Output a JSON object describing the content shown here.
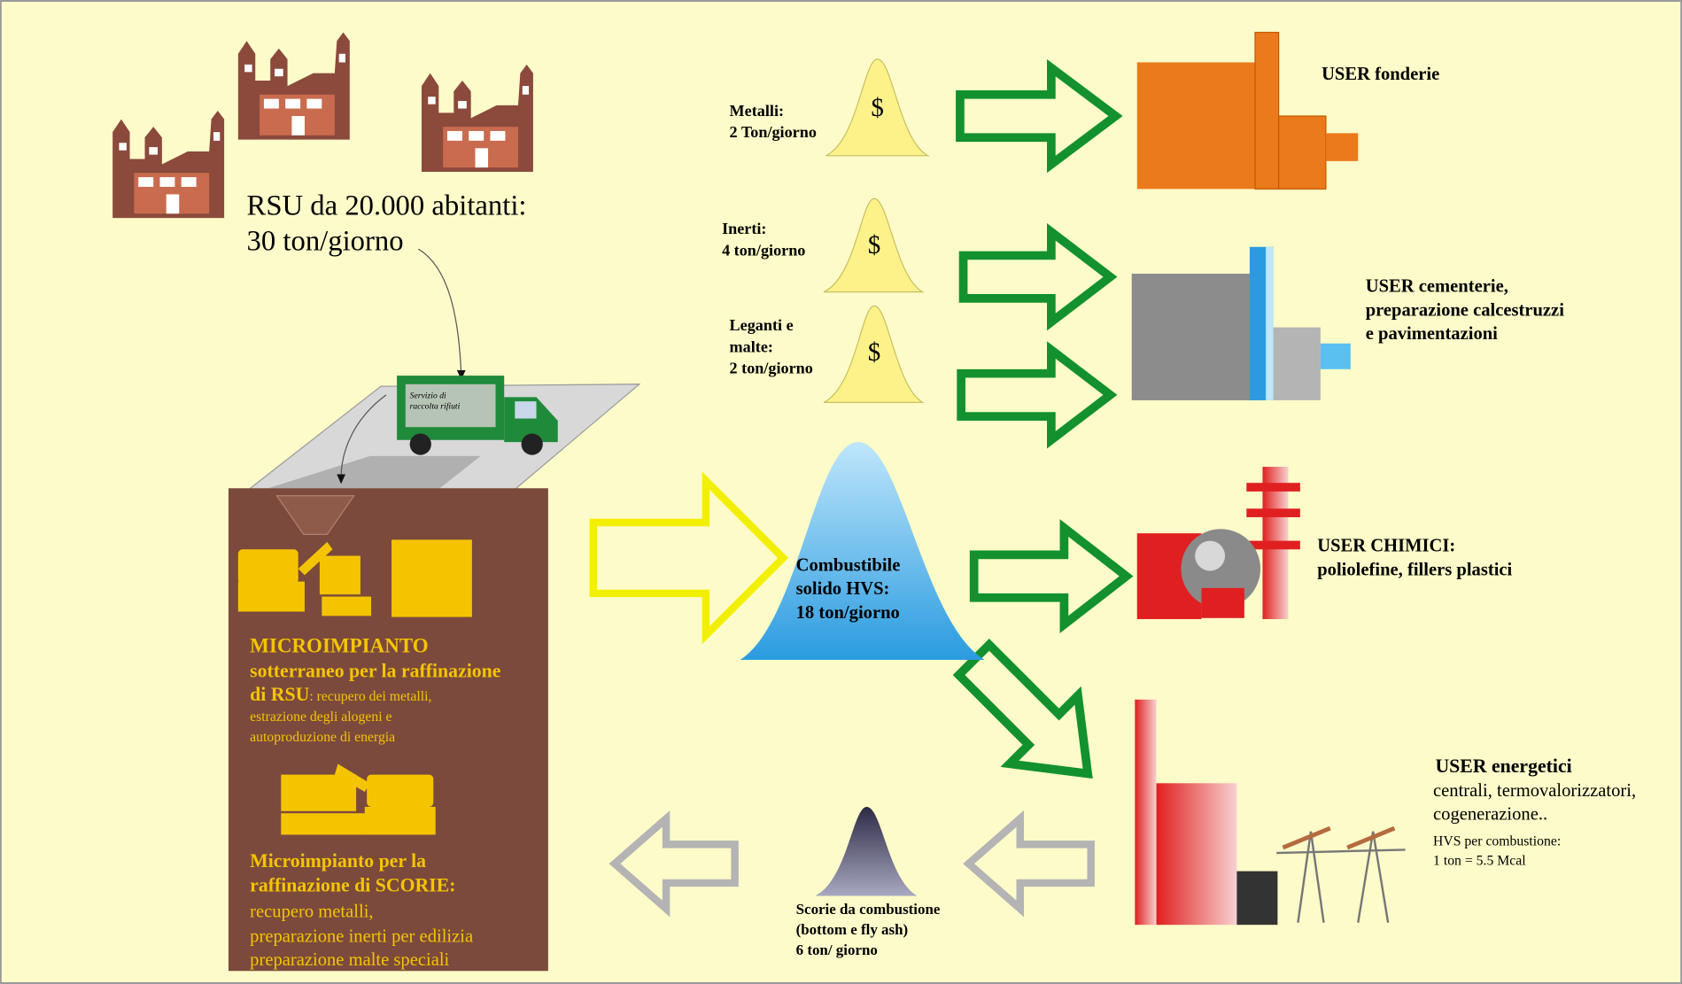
{
  "source": {
    "lines": [
      "RSU da 20.000 abitanti:",
      "30 ton/giorno"
    ]
  },
  "truck": {
    "lines": [
      "Servizio di",
      "raccolta rifiuti"
    ]
  },
  "microimpianto_rsu": {
    "title": "MICROIMPIANTO",
    "lines": [
      "sotterraneo per la raffinazione",
      "di RSU"
    ],
    "detail": [
      ": recupero dei metalli,",
      "estrazione degli alogeni e",
      "autoproduzione di energia"
    ]
  },
  "microimpianto_scorie": {
    "lines": [
      "Microimpianto  per la",
      "raffinazione di SCORIE:"
    ],
    "detail": [
      "recupero metalli,",
      "preparazione inerti per edilizia",
      "preparazione malte speciali"
    ]
  },
  "products": [
    {
      "lines": [
        "Metalli:",
        "2 Ton/giorno"
      ],
      "symbol": "$"
    },
    {
      "lines": [
        "Inerti:",
        "4 ton/giorno"
      ],
      "symbol": "$"
    },
    {
      "lines": [
        "Leganti e",
        "malte:",
        "2 ton/giorno"
      ],
      "symbol": "$"
    }
  ],
  "hvs": {
    "lines": [
      "Combustibile",
      "solido HVS:",
      "18  ton/giorno"
    ]
  },
  "scorie": {
    "lines": [
      "Scorie da combustione",
      "(bottom e  fly ash)",
      "6 ton/ giorno"
    ]
  },
  "users": [
    {
      "lines": [
        "USER fonderie"
      ]
    },
    {
      "lines": [
        "USER cementerie,",
        "preparazione calcestruzzi",
        "e pavimentazioni"
      ]
    },
    {
      "lines": [
        "USER CHIMICI:",
        "poliolefine, fillers plastici"
      ]
    },
    {
      "title": "USER energetici",
      "lines": [
        "centrali, termovalorizzatori,",
        "cogenerazione.."
      ],
      "note": [
        "HVS per combustione:",
        "1 ton = 5.5 Mcal"
      ]
    }
  ]
}
